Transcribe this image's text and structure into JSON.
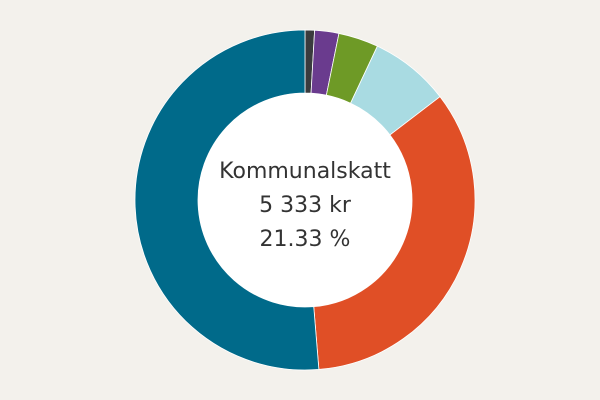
{
  "chart_data": {
    "type": "donut",
    "center_label": {
      "name": "Kommunalskatt",
      "amount": "5 333 kr",
      "share": "21.33 %"
    },
    "categories": [
      null,
      null,
      null,
      null,
      null,
      null
    ],
    "series": [
      {
        "values": [
          0.9,
          2.3,
          3.8,
          7.6,
          34.1,
          51.3
        ],
        "colors": [
          "#3a3b3d",
          "#6a3b8e",
          "#6e9a26",
          "#a9dbe2",
          "#e04f26",
          "#006a8a"
        ]
      }
    ]
  }
}
